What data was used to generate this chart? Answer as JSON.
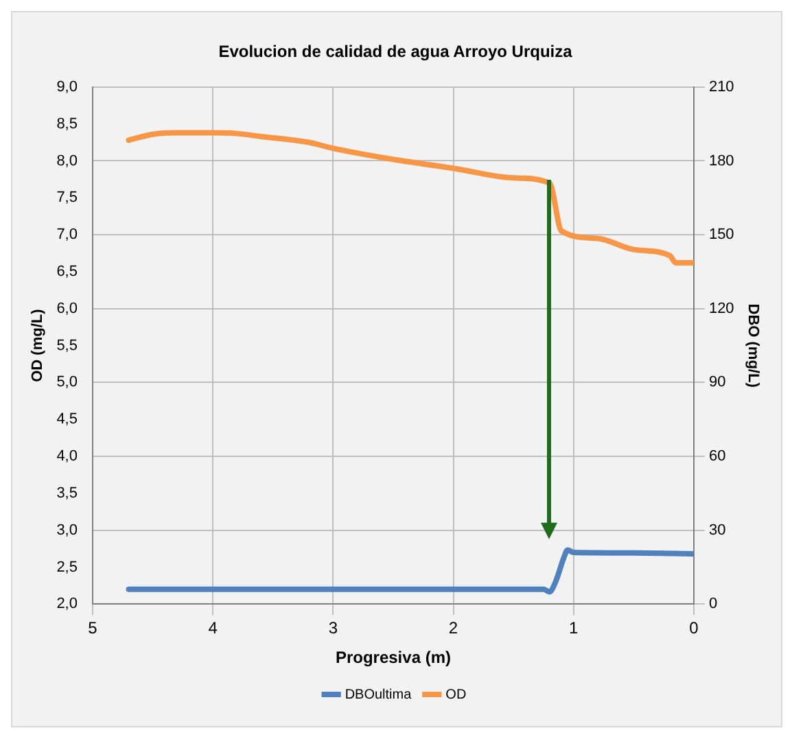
{
  "chart_data": {
    "type": "line",
    "title": "Evolucion de calidad de agua Arroyo Urquiza",
    "xlabel": "Progresiva (m)",
    "ylabel": "OD (mg/L)",
    "y2label": "DBO (mg/L)",
    "xlim": [
      5,
      0
    ],
    "xticks": [
      5,
      4,
      3,
      2,
      1,
      0
    ],
    "ylim": [
      2,
      9
    ],
    "yticks": [
      {
        "value": 2,
        "label": "2,0"
      },
      {
        "value": 2.5,
        "label": "2,5"
      },
      {
        "value": 3,
        "label": "3,0"
      },
      {
        "value": 3.5,
        "label": "3,5"
      },
      {
        "value": 4,
        "label": "4,0"
      },
      {
        "value": 4.5,
        "label": "4,5"
      },
      {
        "value": 5,
        "label": "5,0"
      },
      {
        "value": 5.5,
        "label": "5,5"
      },
      {
        "value": 6,
        "label": "6,0"
      },
      {
        "value": 6.5,
        "label": "6,5"
      },
      {
        "value": 7,
        "label": "7,0"
      },
      {
        "value": 7.5,
        "label": "7,5"
      },
      {
        "value": 8,
        "label": "8,0"
      },
      {
        "value": 8.5,
        "label": "8,5"
      },
      {
        "value": 9,
        "label": "9,0"
      }
    ],
    "y2lim": [
      0,
      210
    ],
    "y2ticks": [
      0,
      30,
      60,
      90,
      120,
      150,
      180,
      210
    ],
    "grid": true,
    "legend": "bottom",
    "marker": "none",
    "line_style": "solid",
    "series": [
      {
        "name": "DBOultima",
        "color": "#4f81bd",
        "axis": "y2",
        "x": [
          4.7,
          4.0,
          3.0,
          2.0,
          1.5,
          1.25,
          1.2,
          1.15,
          1.08,
          1.05,
          1.0,
          0.5,
          0.0
        ],
        "values": [
          6,
          6,
          6,
          6,
          6,
          6,
          5,
          9,
          19,
          22,
          21,
          20.8,
          20.4
        ]
      },
      {
        "name": "OD",
        "color": "#f79646",
        "x": [
          4.7,
          4.5,
          4.3,
          4.0,
          3.8,
          3.6,
          3.2,
          3.0,
          2.5,
          2.0,
          1.5,
          1.2,
          1.1,
          0.8,
          0.5,
          0.2,
          0.15,
          0.0
        ],
        "values": [
          8.28,
          8.36,
          8.38,
          8.38,
          8.37,
          8.33,
          8.25,
          8.17,
          8.02,
          7.9,
          7.77,
          7.7,
          7.05,
          6.95,
          6.8,
          6.72,
          6.62,
          6.62
        ]
      }
    ]
  }
}
